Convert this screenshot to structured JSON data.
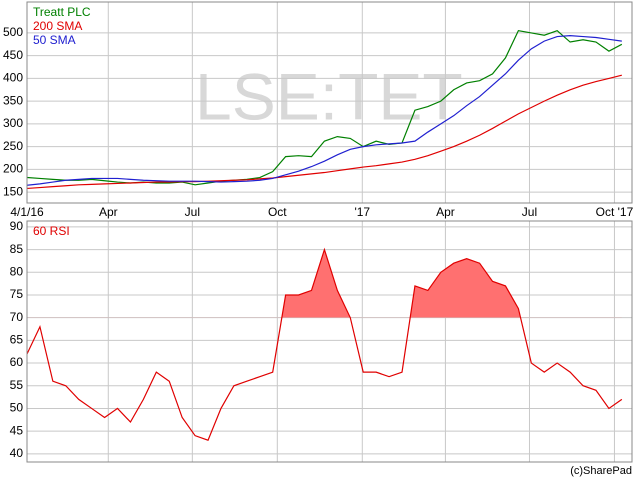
{
  "chart_data": [
    {
      "type": "line",
      "watermark": "LSE:TET",
      "x": [
        "2016-01-04",
        "2016-01-18",
        "2016-02-01",
        "2016-02-15",
        "2016-02-29",
        "2016-03-14",
        "2016-03-28",
        "2016-04-11",
        "2016-04-25",
        "2016-05-09",
        "2016-05-23",
        "2016-06-06",
        "2016-06-20",
        "2016-07-04",
        "2016-07-18",
        "2016-08-01",
        "2016-08-15",
        "2016-08-29",
        "2016-09-12",
        "2016-09-26",
        "2016-10-10",
        "2016-10-24",
        "2016-11-07",
        "2016-11-21",
        "2016-12-05",
        "2016-12-19",
        "2017-01-02",
        "2017-01-16",
        "2017-01-30",
        "2017-02-13",
        "2017-02-27",
        "2017-03-13",
        "2017-03-27",
        "2017-04-10",
        "2017-04-24",
        "2017-05-08",
        "2017-05-22",
        "2017-06-05",
        "2017-06-19",
        "2017-07-03",
        "2017-07-17",
        "2017-07-31",
        "2017-08-14",
        "2017-08-28",
        "2017-09-11",
        "2017-09-25",
        "2017-10-09"
      ],
      "series": [
        {
          "name": "Treatt PLC",
          "color": "#008000",
          "values": [
            182,
            180,
            178,
            176,
            176,
            178,
            175,
            172,
            170,
            172,
            170,
            170,
            172,
            166,
            170,
            174,
            176,
            178,
            182,
            195,
            228,
            230,
            228,
            262,
            272,
            268,
            250,
            262,
            255,
            258,
            330,
            338,
            350,
            375,
            390,
            395,
            410,
            445,
            505,
            500,
            495,
            505,
            480,
            485,
            480,
            460,
            475
          ]
        },
        {
          "name": "200 SMA",
          "color": "#e00000",
          "values": [
            158,
            160,
            162,
            164,
            166,
            167,
            168,
            169,
            170,
            171,
            172,
            172,
            173,
            173,
            174,
            175,
            176,
            177,
            179,
            181,
            184,
            187,
            190,
            193,
            197,
            201,
            205,
            208,
            212,
            216,
            222,
            230,
            240,
            250,
            262,
            275,
            290,
            306,
            322,
            336,
            350,
            363,
            375,
            385,
            393,
            400,
            407
          ]
        },
        {
          "name": "50 SMA",
          "color": "#2020d0",
          "values": [
            165,
            168,
            172,
            176,
            178,
            180,
            180,
            180,
            178,
            176,
            175,
            174,
            174,
            174,
            173,
            172,
            173,
            174,
            176,
            180,
            188,
            196,
            206,
            218,
            232,
            244,
            250,
            254,
            256,
            258,
            262,
            282,
            300,
            318,
            340,
            360,
            385,
            410,
            440,
            465,
            482,
            492,
            494,
            492,
            490,
            486,
            482
          ]
        }
      ],
      "xlim": [
        "2016-01-04",
        "2017-10-20"
      ],
      "xticks": [
        {
          "value": "2016-01-04",
          "label": "4/1/16"
        },
        {
          "value": "2016-04-01",
          "label": "Apr"
        },
        {
          "value": "2016-07-01",
          "label": "Jul"
        },
        {
          "value": "2016-10-01",
          "label": "Oct"
        },
        {
          "value": "2017-01-01",
          "label": "'17"
        },
        {
          "value": "2017-04-01",
          "label": "Apr"
        },
        {
          "value": "2017-07-01",
          "label": "Jul"
        },
        {
          "value": "2017-10-01",
          "label": "Oct '17"
        }
      ],
      "ylim": [
        126,
        568
      ],
      "yticks": [
        150,
        200,
        250,
        300,
        350,
        400,
        450,
        500
      ],
      "grid": true,
      "legend": "top-left"
    },
    {
      "type": "line",
      "x": [
        "2016-01-04",
        "2016-01-18",
        "2016-02-01",
        "2016-02-15",
        "2016-02-29",
        "2016-03-14",
        "2016-03-28",
        "2016-04-11",
        "2016-04-25",
        "2016-05-09",
        "2016-05-23",
        "2016-06-06",
        "2016-06-20",
        "2016-07-04",
        "2016-07-18",
        "2016-08-01",
        "2016-08-15",
        "2016-08-29",
        "2016-09-12",
        "2016-09-26",
        "2016-10-10",
        "2016-10-24",
        "2016-11-07",
        "2016-11-21",
        "2016-12-05",
        "2016-12-19",
        "2017-01-02",
        "2017-01-16",
        "2017-01-30",
        "2017-02-13",
        "2017-02-27",
        "2017-03-13",
        "2017-03-27",
        "2017-04-10",
        "2017-04-24",
        "2017-05-08",
        "2017-05-22",
        "2017-06-05",
        "2017-06-19",
        "2017-07-03",
        "2017-07-17",
        "2017-07-31",
        "2017-08-14",
        "2017-08-28",
        "2017-09-11",
        "2017-09-25",
        "2017-10-09"
      ],
      "series": [
        {
          "name": "60 RSI",
          "color": "#e00000",
          "values": [
            62,
            68,
            56,
            55,
            52,
            50,
            48,
            50,
            47,
            52,
            58,
            56,
            48,
            44,
            43,
            50,
            55,
            56,
            57,
            58,
            75,
            75,
            76,
            85,
            76,
            70,
            58,
            58,
            57,
            58,
            77,
            76,
            80,
            82,
            83,
            82,
            78,
            77,
            72,
            60,
            58,
            60,
            58,
            55,
            54,
            50,
            52
          ]
        }
      ],
      "fill_above": 70,
      "fill_color": "#ff7070",
      "xlim": [
        "2016-01-04",
        "2017-10-20"
      ],
      "ylim": [
        38.2,
        91.3
      ],
      "yticks": [
        40,
        45,
        50,
        55,
        60,
        65,
        70,
        75,
        80,
        85,
        90
      ],
      "grid": true,
      "legend": "top-left",
      "source": "(c)SharePad"
    }
  ]
}
